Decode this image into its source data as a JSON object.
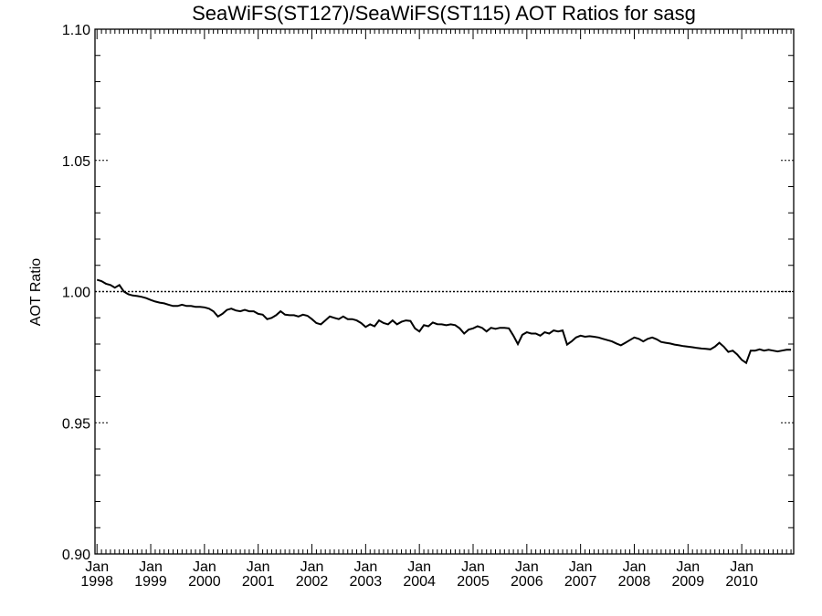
{
  "chart_data": {
    "type": "line",
    "title": "SeaWiFS(ST127)/SeaWiFS(ST115)  AOT Ratios for sasg",
    "xlabel": "",
    "ylabel": "AOT Ratio",
    "ylim": [
      0.9,
      1.1
    ],
    "xlim": [
      "1998-01",
      "2010-12"
    ],
    "yticks": [
      "0.90",
      "0.95",
      "1.00",
      "1.05",
      "1.10"
    ],
    "xticks": [
      {
        "month": "Jan",
        "year": "1998",
        "date": "1998-01"
      },
      {
        "month": "Jan",
        "year": "1999",
        "date": "1999-01"
      },
      {
        "month": "Jan",
        "year": "2000",
        "date": "2000-01"
      },
      {
        "month": "Jan",
        "year": "2001",
        "date": "2001-01"
      },
      {
        "month": "Jan",
        "year": "2002",
        "date": "2002-01"
      },
      {
        "month": "Jan",
        "year": "2003",
        "date": "2003-01"
      },
      {
        "month": "Jan",
        "year": "2004",
        "date": "2004-01"
      },
      {
        "month": "Jan",
        "year": "2005",
        "date": "2005-01"
      },
      {
        "month": "Jan",
        "year": "2006",
        "date": "2006-01"
      },
      {
        "month": "Jan",
        "year": "2007",
        "date": "2007-01"
      },
      {
        "month": "Jan",
        "year": "2008",
        "date": "2008-01"
      },
      {
        "month": "Jan",
        "year": "2009",
        "date": "2009-01"
      },
      {
        "month": "Jan",
        "year": "2010",
        "date": "2010-01"
      }
    ],
    "reference_line": {
      "y": 1.0,
      "style": "dotted"
    },
    "grid": false,
    "series": [
      {
        "color": "#000000",
        "points": [
          [
            "1998-01",
            1.0045
          ],
          [
            "1998-02",
            1.004
          ],
          [
            "1998-03",
            1.003
          ],
          [
            "1998-04",
            1.0025
          ],
          [
            "1998-05",
            1.0015
          ],
          [
            "1998-06",
            1.0025
          ],
          [
            "1998-07",
            1.0
          ],
          [
            "1998-08",
            0.999
          ],
          [
            "1998-09",
            0.9985
          ],
          [
            "1998-10",
            0.9983
          ],
          [
            "1998-11",
            0.998
          ],
          [
            "1998-12",
            0.9975
          ],
          [
            "1999-01",
            0.9968
          ],
          [
            "1999-02",
            0.9962
          ],
          [
            "1999-03",
            0.9958
          ],
          [
            "1999-04",
            0.9955
          ],
          [
            "1999-05",
            0.995
          ],
          [
            "1999-06",
            0.9945
          ],
          [
            "1999-07",
            0.9945
          ],
          [
            "1999-08",
            0.995
          ],
          [
            "1999-09",
            0.9945
          ],
          [
            "1999-10",
            0.9945
          ],
          [
            "1999-11",
            0.9942
          ],
          [
            "1999-12",
            0.9942
          ],
          [
            "2000-01",
            0.994
          ],
          [
            "2000-02",
            0.9935
          ],
          [
            "2000-03",
            0.9925
          ],
          [
            "2000-04",
            0.9905
          ],
          [
            "2000-05",
            0.9915
          ],
          [
            "2000-06",
            0.993
          ],
          [
            "2000-07",
            0.9935
          ],
          [
            "2000-08",
            0.9928
          ],
          [
            "2000-09",
            0.9925
          ],
          [
            "2000-10",
            0.993
          ],
          [
            "2000-11",
            0.9925
          ],
          [
            "2000-12",
            0.9925
          ],
          [
            "2001-01",
            0.9915
          ],
          [
            "2001-02",
            0.9912
          ],
          [
            "2001-03",
            0.9895
          ],
          [
            "2001-04",
            0.99
          ],
          [
            "2001-05",
            0.991
          ],
          [
            "2001-06",
            0.9925
          ],
          [
            "2001-07",
            0.9912
          ],
          [
            "2001-08",
            0.991
          ],
          [
            "2001-09",
            0.991
          ],
          [
            "2001-10",
            0.9905
          ],
          [
            "2001-11",
            0.9912
          ],
          [
            "2001-12",
            0.9908
          ],
          [
            "2002-01",
            0.9895
          ],
          [
            "2002-02",
            0.988
          ],
          [
            "2002-03",
            0.9875
          ],
          [
            "2002-04",
            0.989
          ],
          [
            "2002-05",
            0.9905
          ],
          [
            "2002-06",
            0.99
          ],
          [
            "2002-07",
            0.9895
          ],
          [
            "2002-08",
            0.9905
          ],
          [
            "2002-09",
            0.9895
          ],
          [
            "2002-10",
            0.9895
          ],
          [
            "2002-11",
            0.989
          ],
          [
            "2002-12",
            0.988
          ],
          [
            "2003-01",
            0.9865
          ],
          [
            "2003-02",
            0.9875
          ],
          [
            "2003-03",
            0.9868
          ],
          [
            "2003-04",
            0.989
          ],
          [
            "2003-05",
            0.988
          ],
          [
            "2003-06",
            0.9875
          ],
          [
            "2003-07",
            0.989
          ],
          [
            "2003-08",
            0.9875
          ],
          [
            "2003-09",
            0.9885
          ],
          [
            "2003-10",
            0.989
          ],
          [
            "2003-11",
            0.9888
          ],
          [
            "2003-12",
            0.986
          ],
          [
            "2004-01",
            0.9848
          ],
          [
            "2004-02",
            0.9872
          ],
          [
            "2004-03",
            0.9868
          ],
          [
            "2004-04",
            0.9882
          ],
          [
            "2004-05",
            0.9876
          ],
          [
            "2004-06",
            0.9875
          ],
          [
            "2004-07",
            0.9872
          ],
          [
            "2004-08",
            0.9875
          ],
          [
            "2004-09",
            0.9872
          ],
          [
            "2004-10",
            0.986
          ],
          [
            "2004-11",
            0.984
          ],
          [
            "2004-12",
            0.9855
          ],
          [
            "2005-01",
            0.986
          ],
          [
            "2005-02",
            0.9868
          ],
          [
            "2005-03",
            0.9862
          ],
          [
            "2005-04",
            0.9848
          ],
          [
            "2005-05",
            0.9862
          ],
          [
            "2005-06",
            0.9858
          ],
          [
            "2005-07",
            0.9862
          ],
          [
            "2005-08",
            0.9862
          ],
          [
            "2005-09",
            0.986
          ],
          [
            "2005-10",
            0.9832
          ],
          [
            "2005-11",
            0.98
          ],
          [
            "2005-12",
            0.9835
          ],
          [
            "2006-01",
            0.9845
          ],
          [
            "2006-02",
            0.984
          ],
          [
            "2006-03",
            0.984
          ],
          [
            "2006-04",
            0.9832
          ],
          [
            "2006-05",
            0.9845
          ],
          [
            "2006-06",
            0.984
          ],
          [
            "2006-07",
            0.9852
          ],
          [
            "2006-08",
            0.9848
          ],
          [
            "2006-09",
            0.9852
          ],
          [
            "2006-10",
            0.9798
          ],
          [
            "2006-11",
            0.981
          ],
          [
            "2006-12",
            0.9825
          ],
          [
            "2007-01",
            0.9832
          ],
          [
            "2007-02",
            0.9828
          ],
          [
            "2007-03",
            0.983
          ],
          [
            "2007-04",
            0.9828
          ],
          [
            "2007-05",
            0.9825
          ],
          [
            "2007-06",
            0.982
          ],
          [
            "2007-07",
            0.9815
          ],
          [
            "2007-08",
            0.981
          ],
          [
            "2007-09",
            0.9802
          ],
          [
            "2007-10",
            0.9795
          ],
          [
            "2007-11",
            0.9805
          ],
          [
            "2007-12",
            0.9815
          ],
          [
            "2008-01",
            0.9825
          ],
          [
            "2008-02",
            0.982
          ],
          [
            "2008-03",
            0.981
          ],
          [
            "2008-04",
            0.982
          ],
          [
            "2008-05",
            0.9825
          ],
          [
            "2008-06",
            0.9818
          ],
          [
            "2008-07",
            0.9808
          ],
          [
            "2008-08",
            0.9805
          ],
          [
            "2008-09",
            0.9802
          ],
          [
            "2008-10",
            0.9798
          ],
          [
            "2008-11",
            0.9795
          ],
          [
            "2008-12",
            0.9792
          ],
          [
            "2009-01",
            0.979
          ],
          [
            "2009-02",
            0.9788
          ],
          [
            "2009-03",
            0.9785
          ],
          [
            "2009-04",
            0.9783
          ],
          [
            "2009-05",
            0.9782
          ],
          [
            "2009-06",
            0.978
          ],
          [
            "2009-07",
            0.979
          ],
          [
            "2009-08",
            0.9805
          ],
          [
            "2009-09",
            0.979
          ],
          [
            "2009-10",
            0.977
          ],
          [
            "2009-11",
            0.9775
          ],
          [
            "2009-12",
            0.976
          ],
          [
            "2010-01",
            0.974
          ],
          [
            "2010-02",
            0.9728
          ],
          [
            "2010-03",
            0.9775
          ],
          [
            "2010-04",
            0.9775
          ],
          [
            "2010-05",
            0.978
          ],
          [
            "2010-06",
            0.9775
          ],
          [
            "2010-07",
            0.9778
          ],
          [
            "2010-08",
            0.9775
          ],
          [
            "2010-09",
            0.9772
          ],
          [
            "2010-10",
            0.9775
          ],
          [
            "2010-11",
            0.9778
          ],
          [
            "2010-12",
            0.9778
          ]
        ]
      }
    ]
  }
}
